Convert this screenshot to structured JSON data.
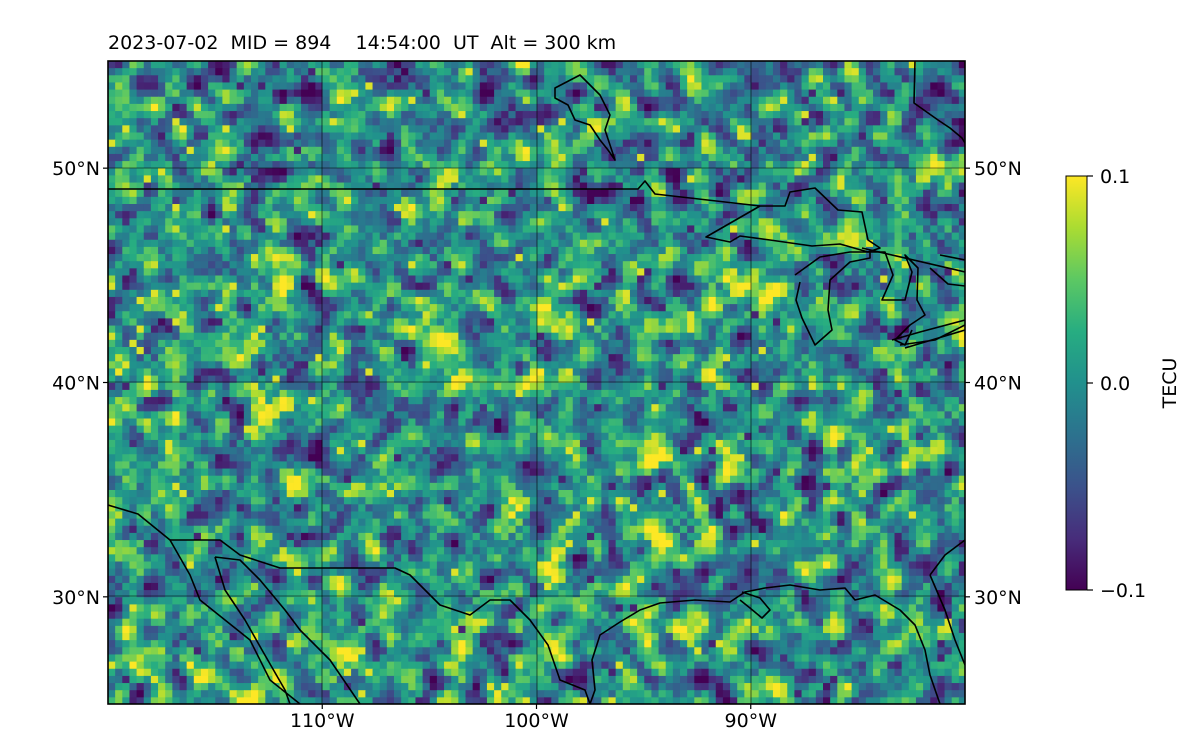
{
  "title": "2023-07-02  MID = 894    14:54:00  UT  Alt = 300 km",
  "map": {
    "lon_range": [
      -120,
      -80
    ],
    "lat_range": [
      25,
      55
    ],
    "lon_ticks": [
      {
        "value": -110,
        "label": "110°W"
      },
      {
        "value": -100,
        "label": "100°W"
      },
      {
        "value": -90,
        "label": "90°W"
      }
    ],
    "lat_ticks": [
      {
        "value": 50,
        "label": "50°N"
      },
      {
        "value": 40,
        "label": "40°N"
      },
      {
        "value": 30,
        "label": "30°N"
      }
    ],
    "colormap": "viridis",
    "coastlines": true,
    "gridlines": true
  },
  "colorbar": {
    "label": "TECU",
    "range": [
      -0.1,
      0.1
    ],
    "ticks": [
      {
        "value": 0.1,
        "label": "0.1"
      },
      {
        "value": 0.0,
        "label": "0.0"
      },
      {
        "value": -0.1,
        "label": "−0.1"
      }
    ]
  },
  "colors": {
    "viridis_low": "#440154",
    "viridis_mid": "#21908d",
    "viridis_high": "#fde725"
  }
}
